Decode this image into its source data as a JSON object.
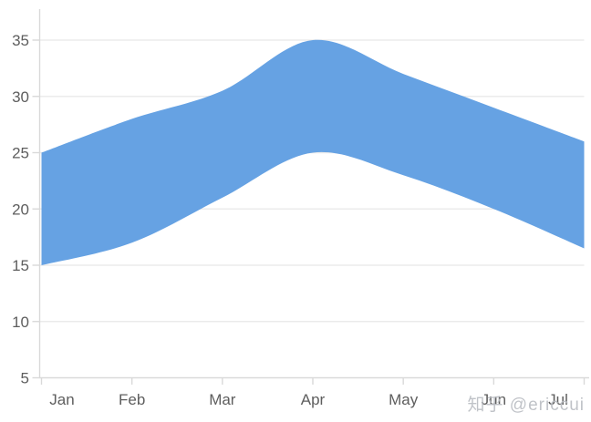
{
  "watermark": "知乎 @ericcui",
  "chart_data": {
    "type": "area",
    "subtype": "range_area_spline",
    "title": "",
    "xlabel": "",
    "ylabel": "",
    "categories": [
      "Jan",
      "Feb",
      "Mar",
      "Apr",
      "May",
      "Jun",
      "Jul"
    ],
    "series": [
      {
        "name": "range",
        "low": [
          15,
          17,
          21,
          25,
          23,
          20,
          16.5
        ],
        "high": [
          25,
          28,
          30.5,
          35,
          32,
          29,
          26
        ]
      }
    ],
    "yticks": [
      5,
      10,
      15,
      20,
      25,
      30,
      35
    ],
    "ylim": [
      5,
      37.5
    ],
    "grid": true,
    "legend": "none",
    "colors": {
      "band_fill": "#66a2e3",
      "grid_line": "#ebebeb",
      "axis_line": "#d9d9d9",
      "tick_mark": "#d9d9d9",
      "tick_label": "#5e5e5e",
      "watermark": "#b9bdc2"
    }
  }
}
